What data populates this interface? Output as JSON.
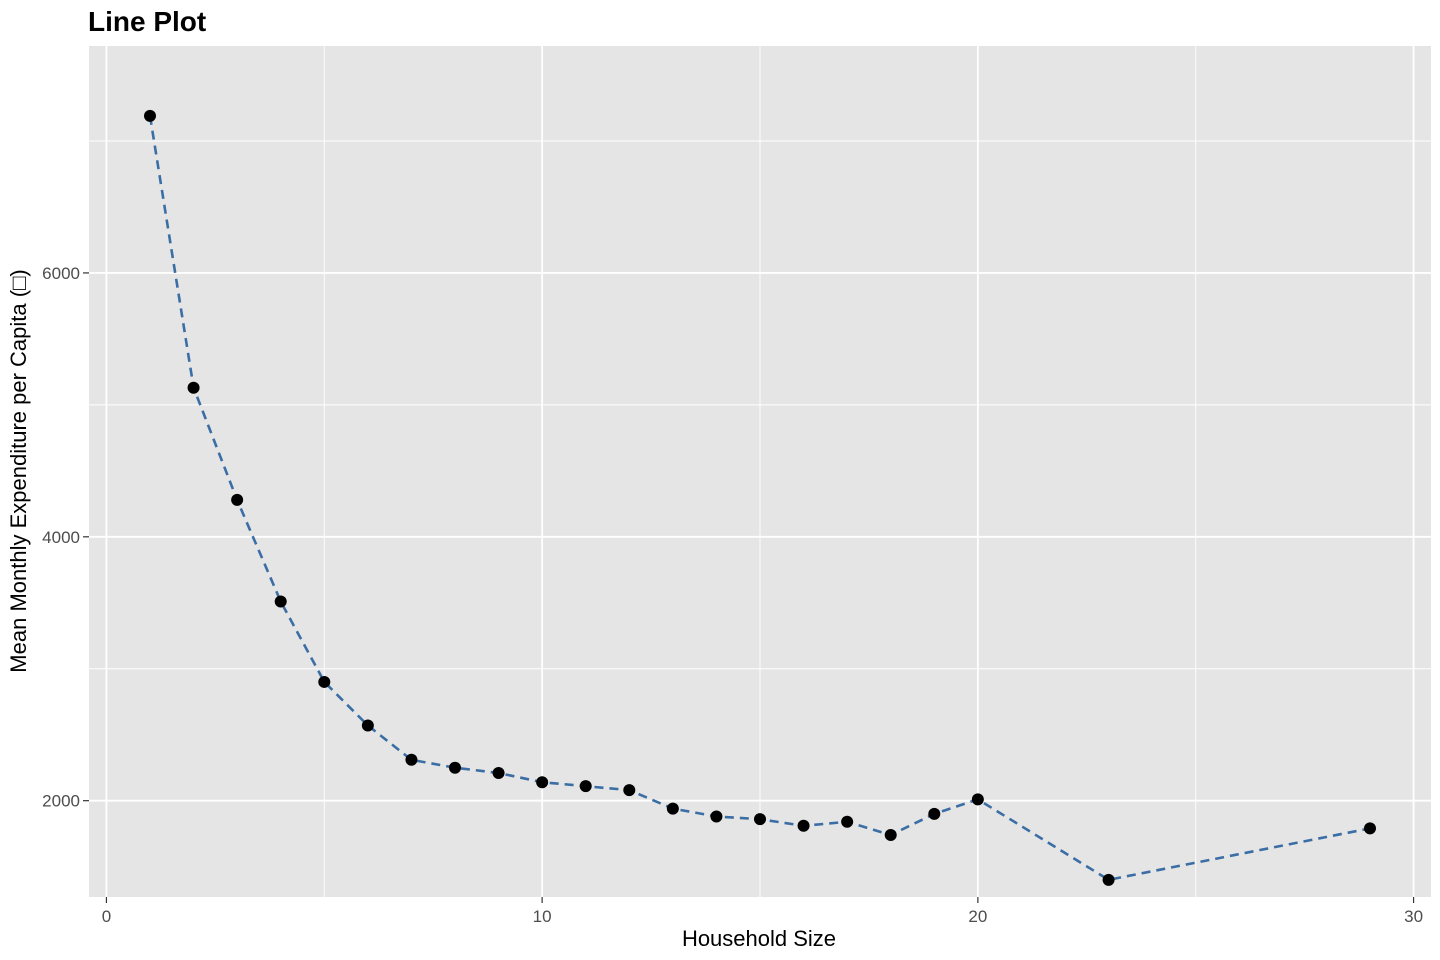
{
  "chart_data": {
    "type": "line",
    "title": "Line Plot",
    "xlabel": "Household Size",
    "ylabel": "Mean Monthly Expenditure per Capita (□)",
    "xlim": [
      -0.4,
      30.4
    ],
    "ylim": [
      1270,
      7720
    ],
    "x_ticks": [
      0,
      10,
      20,
      30
    ],
    "y_ticks": [
      2000,
      4000,
      6000
    ],
    "x_minor": [
      5,
      15,
      25
    ],
    "y_minor": [
      3000,
      5000,
      7000
    ],
    "grid": true,
    "panel_color": "#e5e5e5",
    "line_color": "#3a6ea5",
    "line_style": "dashed",
    "point_color": "#000000",
    "series": [
      {
        "x": [
          1,
          2,
          3,
          4,
          5,
          6,
          7,
          8,
          9,
          10,
          11,
          12,
          13,
          14,
          15,
          16,
          17,
          18,
          19,
          20,
          23,
          29
        ],
        "y": [
          7190,
          5130,
          4280,
          3510,
          2900,
          2570,
          2310,
          2250,
          2210,
          2140,
          2110,
          2080,
          1940,
          1880,
          1860,
          1810,
          1840,
          1740,
          1900,
          2010,
          1400,
          1790
        ]
      }
    ]
  }
}
